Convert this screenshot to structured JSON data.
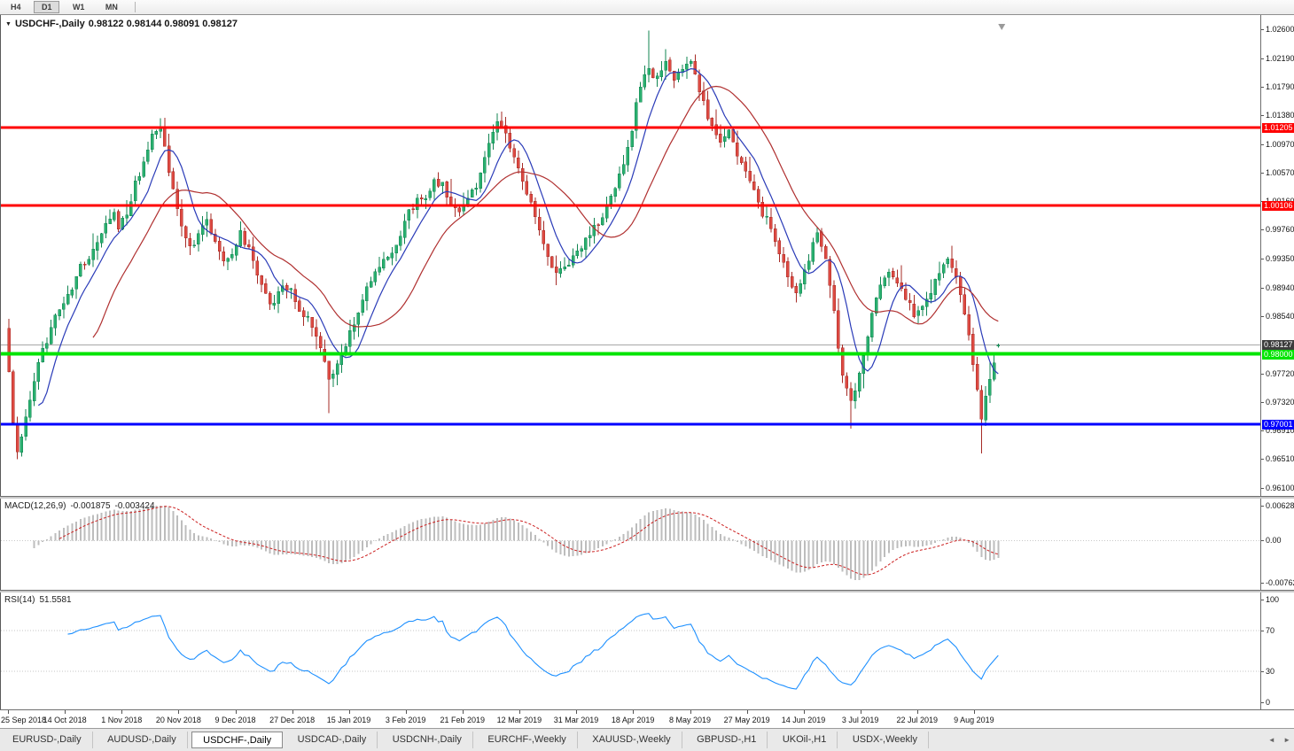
{
  "toolbar": {
    "timeframes": [
      "H4",
      "D1",
      "W1",
      "MN"
    ],
    "active_timeframe": "D1"
  },
  "icons": {
    "dropdown": "▼",
    "scroll_left": "◄",
    "scroll_right": "►"
  },
  "chart": {
    "symbol_label": "USDCHF-,Daily",
    "ohlc": "0.98122 0.98144 0.98091 0.98127"
  },
  "y_axis": {
    "ticks": [
      "1.02600",
      "1.02190",
      "1.01790",
      "1.01380",
      "1.00970",
      "1.00570",
      "1.00160",
      "0.99760",
      "0.99350",
      "0.98940",
      "0.98540",
      "0.97720",
      "0.97320",
      "0.96910",
      "0.96510",
      "0.96100"
    ]
  },
  "x_axis": {
    "dates": [
      "25 Sep 2018",
      "14 Oct 2018",
      "1 Nov 2018",
      "20 Nov 2018",
      "9 Dec 2018",
      "27 Dec 2018",
      "15 Jan 2019",
      "3 Feb 2019",
      "21 Feb 2019",
      "12 Mar 2019",
      "31 Mar 2019",
      "18 Apr 2019",
      "8 May 2019",
      "27 May 2019",
      "14 Jun 2019",
      "3 Jul 2019",
      "22 Jul 2019",
      "9 Aug 2019"
    ]
  },
  "macd_panel": {
    "name": "MACD(12,26,9)",
    "value_main": "-0.001875",
    "value_signal": "-0.003424",
    "axis": [
      "0.006286",
      "0.00",
      "-0.00762"
    ]
  },
  "rsi_panel": {
    "name": "RSI(14)",
    "value": "51.5581",
    "axis": [
      "100",
      "70",
      "30",
      "0"
    ]
  },
  "tabs": {
    "items": [
      "EURUSD-,Daily",
      "AUDUSD-,Daily",
      "USDCHF-,Daily",
      "USDCAD-,Daily",
      "USDCNH-,Daily",
      "EURCHF-,Weekly",
      "XAUUSD-,Weekly",
      "GBPUSD-,H1",
      "UKOil-,H1",
      "USDX-,Weekly"
    ],
    "active": "USDCHF-,Daily"
  },
  "colors": {
    "bull": "#2ab06f",
    "bull_border": "#118552",
    "bear": "#dd4a42",
    "bear_border": "#a62b26",
    "ma_fast": "#2a3bb8",
    "ma_slow": "#b03030",
    "macd_hist": "#bdbdbd",
    "macd_signal": "#cc1f1f",
    "rsi_line": "#1e90ff",
    "marker_bg": "#3c3c3c"
  },
  "chart_data": {
    "type": "candlestick",
    "symbol": "USDCHF",
    "timeframe": "Daily",
    "current": {
      "open": 0.98122,
      "high": 0.98144,
      "low": 0.98091,
      "close": 0.98127
    },
    "price_range": [
      0.961,
      1.026
    ],
    "bars": 236,
    "close_anchors": [
      [
        0,
        0.977
      ],
      [
        1,
        0.97
      ],
      [
        2,
        0.9662
      ],
      [
        3,
        0.968
      ],
      [
        5,
        0.9732
      ],
      [
        7,
        0.9786
      ],
      [
        9,
        0.982
      ],
      [
        11,
        0.985
      ],
      [
        13,
        0.9876
      ],
      [
        15,
        0.9892
      ],
      [
        17,
        0.9922
      ],
      [
        19,
        0.9931
      ],
      [
        21,
        0.9958
      ],
      [
        23,
        0.9988
      ],
      [
        25,
        1.0005
      ],
      [
        26,
        0.9982
      ],
      [
        28,
        1.0002
      ],
      [
        30,
        1.004
      ],
      [
        32,
        1.0072
      ],
      [
        34,
        1.011
      ],
      [
        36,
        1.0125
      ],
      [
        37,
        1.0092
      ],
      [
        39,
        1.003
      ],
      [
        41,
        0.9986
      ],
      [
        43,
        0.995
      ],
      [
        45,
        0.9966
      ],
      [
        47,
        0.999
      ],
      [
        49,
        0.9962
      ],
      [
        51,
        0.993
      ],
      [
        53,
        0.9946
      ],
      [
        55,
        0.997
      ],
      [
        57,
        0.995
      ],
      [
        59,
        0.9916
      ],
      [
        61,
        0.9882
      ],
      [
        63,
        0.987
      ],
      [
        65,
        0.99
      ],
      [
        67,
        0.989
      ],
      [
        69,
        0.9856
      ],
      [
        71,
        0.985
      ],
      [
        73,
        0.9826
      ],
      [
        75,
        0.979
      ],
      [
        76,
        0.9762
      ],
      [
        77,
        0.9776
      ],
      [
        79,
        0.98
      ],
      [
        81,
        0.983
      ],
      [
        83,
        0.986
      ],
      [
        85,
        0.989
      ],
      [
        87,
        0.992
      ],
      [
        89,
        0.9931
      ],
      [
        91,
        0.9945
      ],
      [
        93,
        0.997
      ],
      [
        95,
        1.0
      ],
      [
        97,
        1.0016
      ],
      [
        99,
        1.0021
      ],
      [
        101,
        1.0046
      ],
      [
        103,
        1.004
      ],
      [
        105,
        1.001
      ],
      [
        107,
        1.0
      ],
      [
        109,
        1.0021
      ],
      [
        111,
        1.004
      ],
      [
        113,
        1.0076
      ],
      [
        115,
        1.0116
      ],
      [
        116,
        1.013
      ],
      [
        118,
        1.011
      ],
      [
        120,
        1.008
      ],
      [
        122,
        1.0046
      ],
      [
        124,
        1.001
      ],
      [
        126,
        0.9976
      ],
      [
        128,
        0.994
      ],
      [
        130,
        0.991
      ],
      [
        132,
        0.9921
      ],
      [
        134,
        0.994
      ],
      [
        136,
        0.995
      ],
      [
        138,
        0.997
      ],
      [
        140,
        0.9986
      ],
      [
        142,
        1.0006
      ],
      [
        144,
        1.0036
      ],
      [
        146,
        1.007
      ],
      [
        148,
        1.012
      ],
      [
        149,
        1.016
      ],
      [
        151,
        1.0196
      ],
      [
        152,
        1.021
      ],
      [
        153,
        1.0186
      ],
      [
        155,
        1.0206
      ],
      [
        156,
        1.022
      ],
      [
        158,
        1.019
      ],
      [
        160,
        1.0206
      ],
      [
        162,
        1.0216
      ],
      [
        163,
        1.0196
      ],
      [
        165,
        1.0156
      ],
      [
        167,
        1.012
      ],
      [
        169,
        1.01
      ],
      [
        171,
        1.0116
      ],
      [
        173,
        1.008
      ],
      [
        175,
        1.0056
      ],
      [
        177,
        1.003
      ],
      [
        179,
        1.0
      ],
      [
        181,
        0.998
      ],
      [
        183,
        0.9946
      ],
      [
        185,
        0.9906
      ],
      [
        187,
        0.9886
      ],
      [
        189,
        0.9916
      ],
      [
        191,
        0.9956
      ],
      [
        192,
        0.9976
      ],
      [
        194,
        0.993
      ],
      [
        196,
        0.9856
      ],
      [
        198,
        0.977
      ],
      [
        200,
        0.973
      ],
      [
        201,
        0.975
      ],
      [
        203,
        0.98
      ],
      [
        205,
        0.9856
      ],
      [
        207,
        0.9896
      ],
      [
        209,
        0.992
      ],
      [
        211,
        0.9906
      ],
      [
        213,
        0.988
      ],
      [
        215,
        0.9856
      ],
      [
        217,
        0.9866
      ],
      [
        219,
        0.989
      ],
      [
        221,
        0.9916
      ],
      [
        223,
        0.993
      ],
      [
        225,
        0.991
      ],
      [
        227,
        0.986
      ],
      [
        229,
        0.979
      ],
      [
        230,
        0.9746
      ],
      [
        231,
        0.9712
      ],
      [
        232,
        0.9738
      ],
      [
        233,
        0.9766
      ],
      [
        234,
        0.979
      ],
      [
        235,
        0.98127
      ]
    ],
    "spikes": [
      [
        2,
        "low",
        0.9651
      ],
      [
        36,
        "high",
        1.0134
      ],
      [
        76,
        "low",
        0.9716
      ],
      [
        116,
        "high",
        1.0141
      ],
      [
        152,
        "high",
        1.0259
      ],
      [
        156,
        "high",
        1.0232
      ],
      [
        200,
        "low",
        0.9694
      ],
      [
        231,
        "low",
        0.9659
      ]
    ],
    "hlines": [
      {
        "price": 1.01205,
        "label": "1.01205",
        "color": "#ff0000",
        "width": 3
      },
      {
        "price": 1.00106,
        "label": "1.00106",
        "color": "#ff0000",
        "width": 3
      },
      {
        "price": 0.98,
        "label": "0.98000",
        "color": "#00e400",
        "width": 4
      },
      {
        "price": 0.97001,
        "label": "0.97001",
        "color": "#0000ff",
        "width": 3
      }
    ],
    "price_marker": {
      "price": 0.98127,
      "label": "0.98127"
    },
    "moving_averages": [
      {
        "period": 8,
        "color_key": "ma_fast"
      },
      {
        "period": 21,
        "color_key": "ma_slow"
      }
    ],
    "macd": {
      "fast": 12,
      "slow": 26,
      "signal": 9,
      "axis_range": [
        -0.00762,
        0.006286
      ]
    },
    "rsi": {
      "period": 14,
      "levels": [
        30,
        70
      ],
      "range": [
        0,
        100
      ]
    }
  }
}
